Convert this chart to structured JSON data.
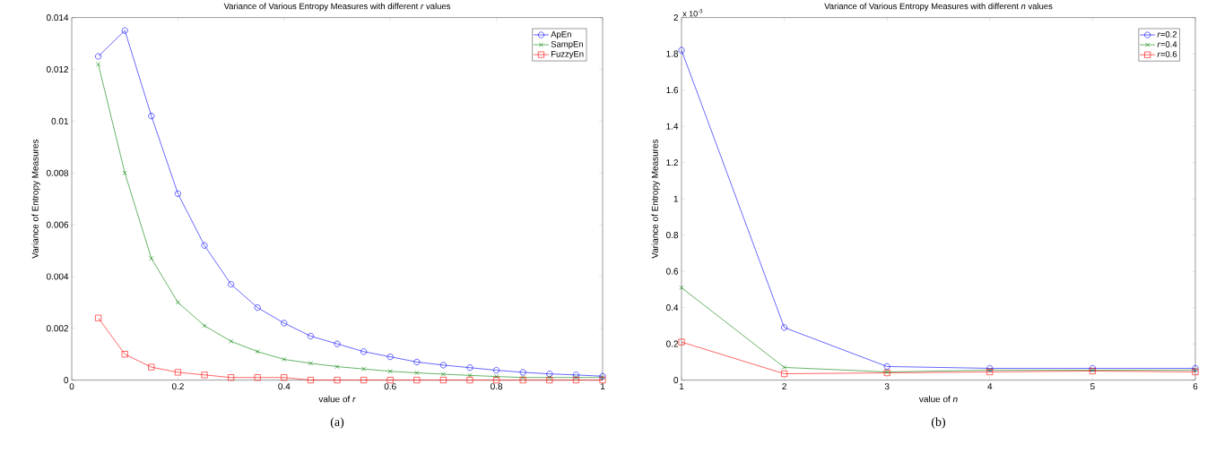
{
  "chart_data": [
    {
      "type": "line",
      "title": "Variance of Various Entropy Measures with different *r* values",
      "xlabel": "value of *r*",
      "ylabel": "Variance of Entropy Measures",
      "x": [
        0.05,
        0.1,
        0.15,
        0.2,
        0.25,
        0.3,
        0.35,
        0.4,
        0.45,
        0.5,
        0.55,
        0.6,
        0.65,
        0.7,
        0.75,
        0.8,
        0.85,
        0.9,
        0.95,
        1
      ],
      "series": [
        {
          "name": "ApEn",
          "color": "#0000ff",
          "marker": "circle",
          "values": [
            0.0125,
            0.0135,
            0.0102,
            0.0072,
            0.0052,
            0.0037,
            0.0028,
            0.0022,
            0.0017,
            0.0014,
            0.0011,
            0.0009,
            0.0007,
            0.00058,
            0.00048,
            0.00038,
            0.0003,
            0.00024,
            0.0002,
            0.00015
          ]
        },
        {
          "name": "SampEn",
          "color": "#008000",
          "marker": "cross",
          "values": [
            0.0122,
            0.008,
            0.0047,
            0.003,
            0.0021,
            0.0015,
            0.0011,
            0.0008,
            0.00065,
            0.00052,
            0.00043,
            0.00034,
            0.00028,
            0.00023,
            0.00018,
            0.00014,
            0.0001,
            0.0001,
            0.0001,
            0.0001
          ]
        },
        {
          "name": "FuzzyEn",
          "color": "#ff0000",
          "marker": "square",
          "values": [
            0.0024,
            0.001,
            0.0005,
            0.0003,
            0.0002,
            0.0001,
            0.0001,
            0.0001,
            0,
            0,
            0,
            0,
            0,
            0,
            0,
            0,
            0,
            0,
            0,
            0
          ]
        }
      ],
      "xlim": [
        0,
        1
      ],
      "ylim": [
        0,
        0.014
      ],
      "xticks": [
        0,
        0.2,
        0.4,
        0.6,
        0.8,
        1
      ],
      "yticks": [
        0,
        0.002,
        0.004,
        0.006,
        0.008,
        0.01,
        0.012,
        0.014
      ],
      "legend": "top right",
      "grid": false,
      "line_style": "solid",
      "annotations": [
        "(a)"
      ]
    },
    {
      "type": "line",
      "title": "Variance of Various Entropy Measures with different *n* values",
      "xlabel": "value of *n*",
      "ylabel": "Variance of Entropy Measures",
      "x": [
        1,
        2,
        3,
        4,
        5,
        6
      ],
      "series": [
        {
          "name": "*r*=0.2",
          "color": "#0000ff",
          "marker": "circle",
          "values": [
            1.82,
            0.29,
            0.075,
            0.065,
            0.065,
            0.065
          ]
        },
        {
          "name": "*r*=0.4",
          "color": "#008000",
          "marker": "cross",
          "values": [
            0.51,
            0.07,
            0.045,
            0.055,
            0.055,
            0.055
          ]
        },
        {
          "name": "*r*=0.6",
          "color": "#ff0000",
          "marker": "square",
          "values": [
            0.21,
            0.035,
            0.04,
            0.045,
            0.05,
            0.045
          ]
        }
      ],
      "xlim": [
        1,
        6
      ],
      "ylim": [
        0,
        2
      ],
      "xticks": [
        1,
        2,
        3,
        4,
        5,
        6
      ],
      "yticks": [
        0,
        0.2,
        0.4,
        0.6,
        0.8,
        1,
        1.2,
        1.4,
        1.6,
        1.8,
        2
      ],
      "legend": "top right",
      "grid": false,
      "line_style": "solid",
      "annotations": [
        "x 10$^{-3}$",
        "(b)"
      ]
    }
  ]
}
